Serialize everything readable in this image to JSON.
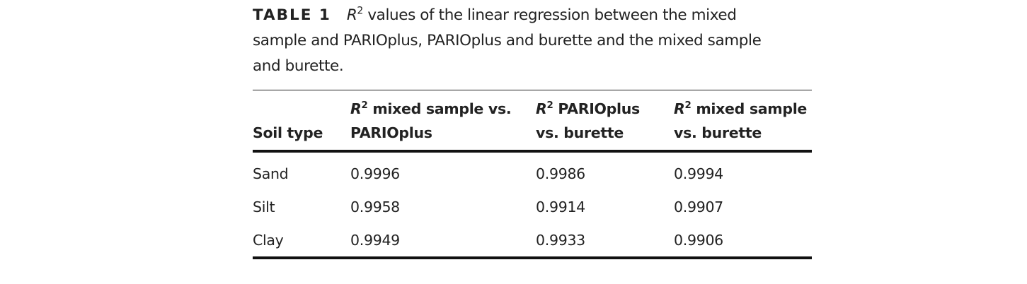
{
  "caption": {
    "label": "TABLE 1",
    "symbol": "R",
    "superscript": "2",
    "lines": [
      "values of the linear regression between the mixed",
      "sample and PARIOplus, PARIOplus and burette and the mixed sample",
      "and burette."
    ]
  },
  "table": {
    "header": [
      "Soil type",
      {
        "symbol": "R",
        "superscript": "2",
        "lines": [
          "mixed sample vs.",
          "PARIOplus"
        ]
      },
      {
        "symbol": "R",
        "superscript": "2",
        "lines": [
          "PARIOplus",
          "vs. burette"
        ]
      },
      {
        "symbol": "R",
        "superscript": "2",
        "lines": [
          "mixed sample",
          "vs. burette"
        ]
      }
    ],
    "rows": [
      [
        "Sand",
        "0.9996",
        "0.9986",
        "0.9994"
      ],
      [
        "Silt",
        "0.9958",
        "0.9914",
        "0.9907"
      ],
      [
        "Clay",
        "0.9949",
        "0.9933",
        "0.9906"
      ]
    ]
  }
}
